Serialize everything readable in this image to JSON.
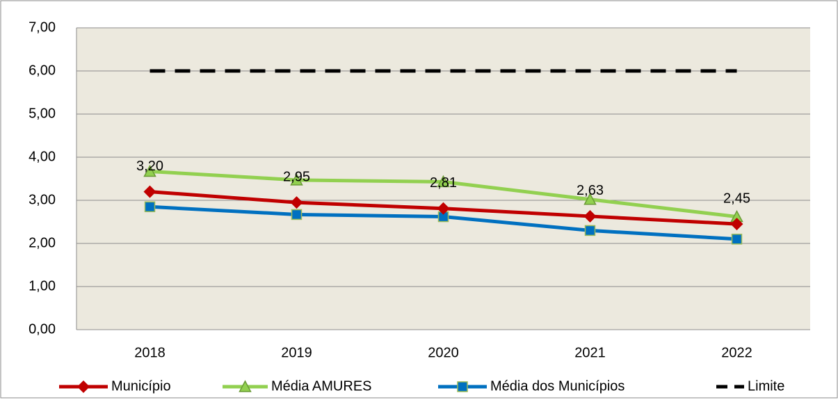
{
  "chart_data": {
    "type": "line",
    "categories": [
      "2018",
      "2019",
      "2020",
      "2021",
      "2022"
    ],
    "series": [
      {
        "name": "Município",
        "color": "#c00000",
        "marker": "diamond",
        "values": [
          3.2,
          2.95,
          2.81,
          2.63,
          2.45
        ],
        "value_labels": [
          "3,20",
          "2,95",
          "2,81",
          "2,63",
          "2,45"
        ]
      },
      {
        "name": "Média AMURES",
        "color": "#92d050",
        "marker": "triangle",
        "values": [
          3.67,
          3.47,
          3.43,
          3.02,
          2.62
        ]
      },
      {
        "name": "Média dos Municípios",
        "color": "#0070c0",
        "marker": "square",
        "values": [
          2.85,
          2.67,
          2.62,
          2.3,
          2.1
        ]
      },
      {
        "name": "Limite",
        "color": "#000000",
        "dashed": true,
        "values": [
          6,
          6,
          6,
          6,
          6
        ]
      }
    ],
    "ylim": [
      0,
      7
    ],
    "yticks": [
      {
        "value": 0,
        "label": "0,00"
      },
      {
        "value": 1,
        "label": "1,00"
      },
      {
        "value": 2,
        "label": "2,00"
      },
      {
        "value": 3,
        "label": "3,00"
      },
      {
        "value": 4,
        "label": "4,00"
      },
      {
        "value": 5,
        "label": "5,00"
      },
      {
        "value": 6,
        "label": "6,00"
      },
      {
        "value": 7,
        "label": "7,00"
      }
    ],
    "grid": true,
    "legend": "bottom"
  }
}
